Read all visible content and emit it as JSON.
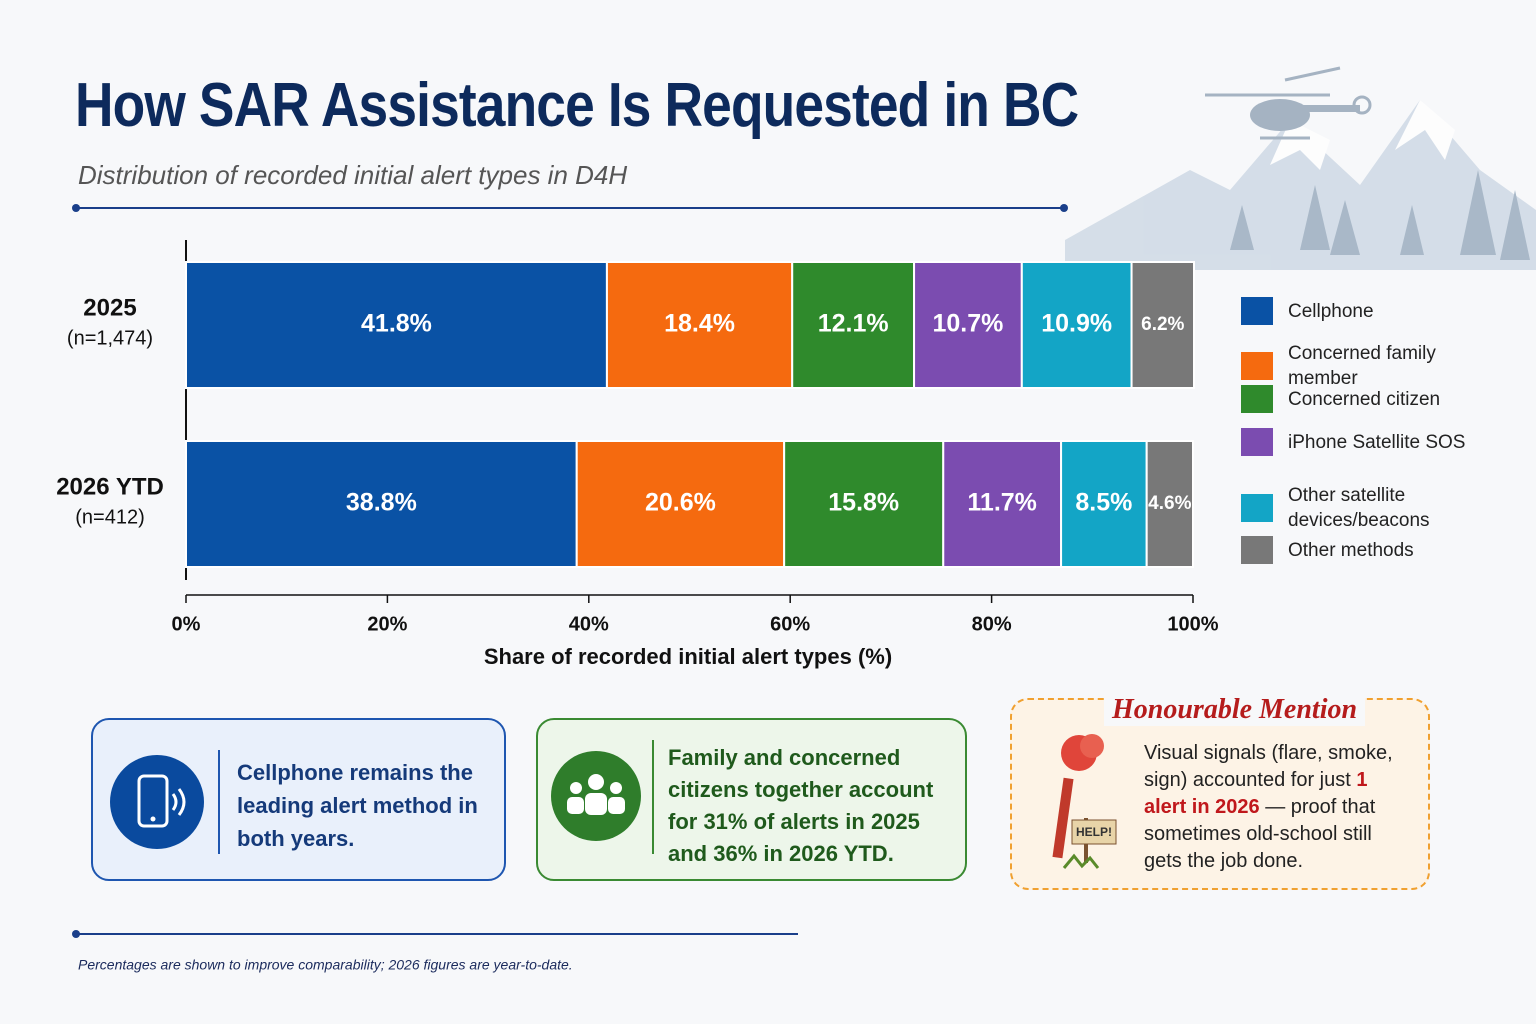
{
  "title": "How SAR Assistance Is Requested in BC",
  "subtitle": "Distribution of recorded initial alert types in D4H",
  "chart_data": {
    "type": "bar",
    "orientation": "horizontal",
    "stacked": true,
    "categories": [
      "2025",
      "2026 YTD"
    ],
    "category_notes": [
      "(n=1,474)",
      "(n=412)"
    ],
    "series": [
      {
        "name": "Cellphone",
        "color": "#0a52a5",
        "values": [
          41.8,
          38.8
        ],
        "value_labels": [
          "41.8%",
          "38.8%"
        ]
      },
      {
        "name": "Concerned family member",
        "color": "#f56a0f",
        "values": [
          18.4,
          20.6
        ],
        "value_labels": [
          "18.4%",
          "20.6%"
        ]
      },
      {
        "name": "Concerned citizen",
        "color": "#2f8a2c",
        "values": [
          12.1,
          15.8
        ],
        "value_labels": [
          "12.1%",
          "15.8%"
        ]
      },
      {
        "name": "iPhone Satellite SOS",
        "color": "#7b4cb0",
        "values": [
          10.7,
          11.7
        ],
        "value_labels": [
          "10.7%",
          "11.7%"
        ]
      },
      {
        "name": "Other satellite devices/beacons",
        "color": "#13a5c6",
        "values": [
          10.9,
          8.5
        ],
        "value_labels": [
          "10.9%",
          "8.5%"
        ]
      },
      {
        "name": "Other methods",
        "color": "#787878",
        "values": [
          6.2,
          4.6
        ],
        "value_labels": [
          "6.2%",
          "4.6%"
        ]
      }
    ],
    "xlim": [
      0,
      100
    ],
    "xticks": [
      {
        "value": 0,
        "label": "0%"
      },
      {
        "value": 20,
        "label": "20%"
      },
      {
        "value": 40,
        "label": "40%"
      },
      {
        "value": 60,
        "label": "60%"
      },
      {
        "value": 80,
        "label": "80%"
      },
      {
        "value": 100,
        "label": "100%"
      }
    ],
    "xlabel": "Share of recorded initial alert types (%)",
    "legend": "right"
  },
  "callouts": [
    {
      "text": "Cellphone remains the leading alert method in both years."
    },
    {
      "text": "Family and concerned citizens together account for 31% of alerts in 2025 and 36% in 2026 YTD."
    }
  ],
  "mention": {
    "title": "Honourable Mention",
    "text_before": "Visual signals (flare, smoke, sign) accounted for just",
    "highlight": "1 alert in 2026",
    "text_after": "— proof that sometimes old-school still gets the job done.",
    "sign": "HELP!"
  },
  "footnote": "Percentages are shown to improve comparability; 2026 figures are year-to-date."
}
